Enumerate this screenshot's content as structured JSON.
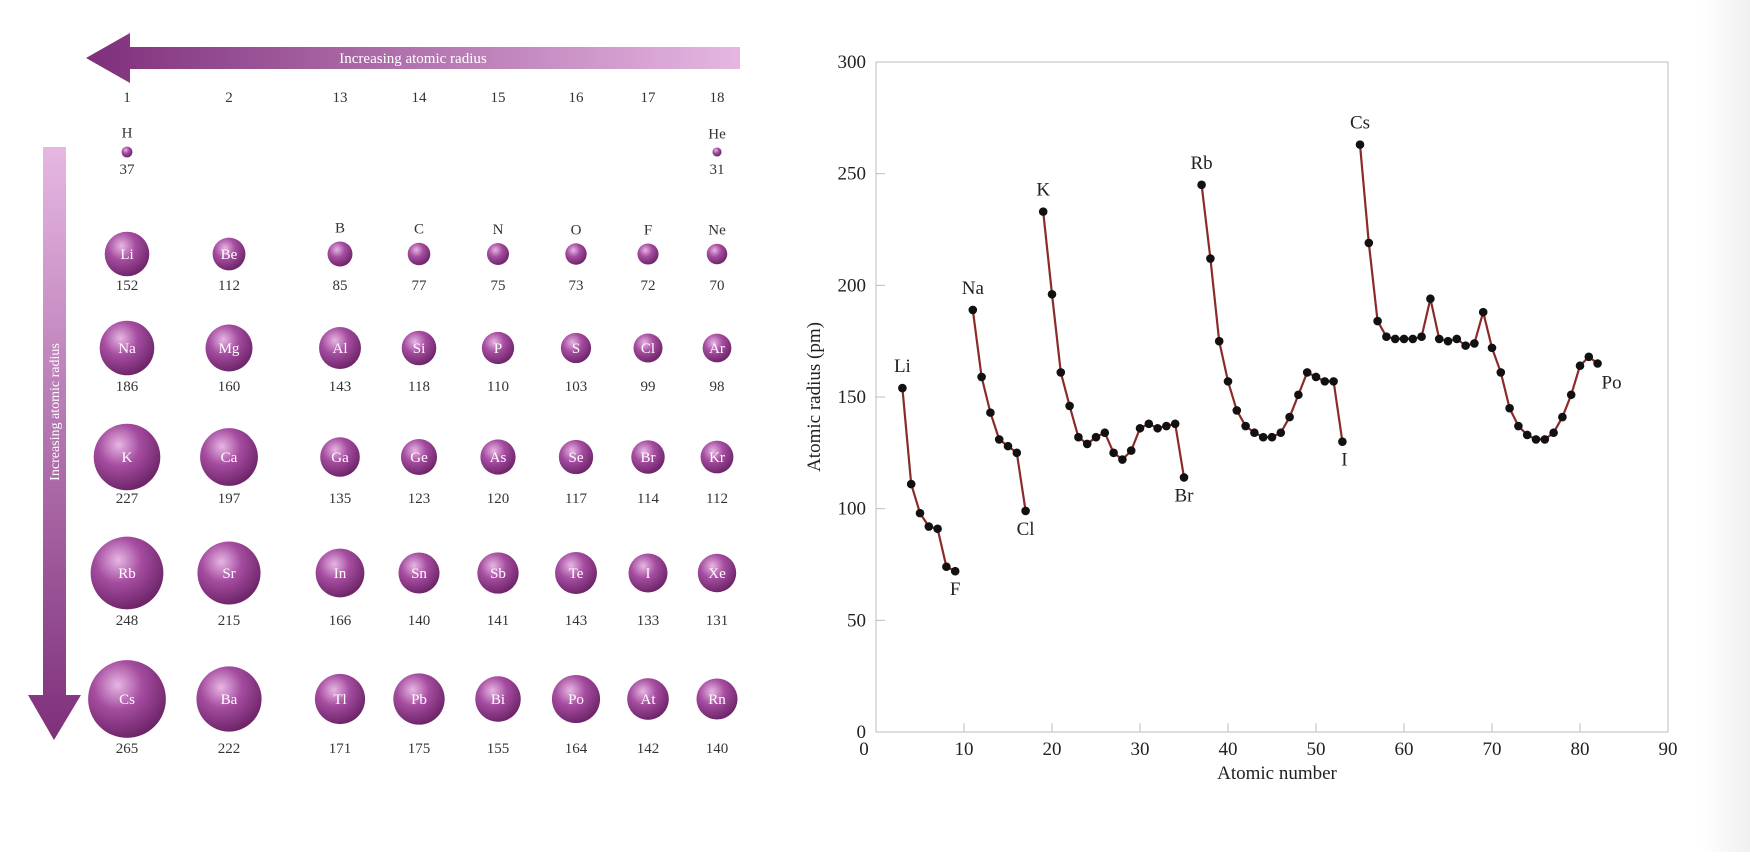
{
  "periodic": {
    "horizontal_arrow_label": "Increasing atomic radius",
    "vertical_arrow_label": "Increasing atomic radius",
    "groups": [
      "1",
      "2",
      "13",
      "14",
      "15",
      "16",
      "17",
      "18"
    ],
    "unit": "pm",
    "sphere_color": "#8e3b8a",
    "arrow_color": "#8a3a86",
    "elements": [
      {
        "symbol": "H",
        "radius": 37,
        "group": "1",
        "period": 1
      },
      {
        "symbol": "He",
        "radius": 31,
        "group": "18",
        "period": 1
      },
      {
        "symbol": "Li",
        "radius": 152,
        "group": "1",
        "period": 2
      },
      {
        "symbol": "Be",
        "radius": 112,
        "group": "2",
        "period": 2
      },
      {
        "symbol": "B",
        "radius": 85,
        "group": "13",
        "period": 2
      },
      {
        "symbol": "C",
        "radius": 77,
        "group": "14",
        "period": 2
      },
      {
        "symbol": "N",
        "radius": 75,
        "group": "15",
        "period": 2
      },
      {
        "symbol": "O",
        "radius": 73,
        "group": "16",
        "period": 2
      },
      {
        "symbol": "F",
        "radius": 72,
        "group": "17",
        "period": 2
      },
      {
        "symbol": "Ne",
        "radius": 70,
        "group": "18",
        "period": 2
      },
      {
        "symbol": "Na",
        "radius": 186,
        "group": "1",
        "period": 3
      },
      {
        "symbol": "Mg",
        "radius": 160,
        "group": "2",
        "period": 3
      },
      {
        "symbol": "Al",
        "radius": 143,
        "group": "13",
        "period": 3
      },
      {
        "symbol": "Si",
        "radius": 118,
        "group": "14",
        "period": 3
      },
      {
        "symbol": "P",
        "radius": 110,
        "group": "15",
        "period": 3
      },
      {
        "symbol": "S",
        "radius": 103,
        "group": "16",
        "period": 3
      },
      {
        "symbol": "Cl",
        "radius": 99,
        "group": "17",
        "period": 3
      },
      {
        "symbol": "Ar",
        "radius": 98,
        "group": "18",
        "period": 3
      },
      {
        "symbol": "K",
        "radius": 227,
        "group": "1",
        "period": 4
      },
      {
        "symbol": "Ca",
        "radius": 197,
        "group": "2",
        "period": 4
      },
      {
        "symbol": "Ga",
        "radius": 135,
        "group": "13",
        "period": 4
      },
      {
        "symbol": "Ge",
        "radius": 123,
        "group": "14",
        "period": 4
      },
      {
        "symbol": "As",
        "radius": 120,
        "group": "15",
        "period": 4
      },
      {
        "symbol": "Se",
        "radius": 117,
        "group": "16",
        "period": 4
      },
      {
        "symbol": "Br",
        "radius": 114,
        "group": "17",
        "period": 4
      },
      {
        "symbol": "Kr",
        "radius": 112,
        "group": "18",
        "period": 4
      },
      {
        "symbol": "Rb",
        "radius": 248,
        "group": "1",
        "period": 5
      },
      {
        "symbol": "Sr",
        "radius": 215,
        "group": "2",
        "period": 5
      },
      {
        "symbol": "In",
        "radius": 166,
        "group": "13",
        "period": 5
      },
      {
        "symbol": "Sn",
        "radius": 140,
        "group": "14",
        "period": 5
      },
      {
        "symbol": "Sb",
        "radius": 141,
        "group": "15",
        "period": 5
      },
      {
        "symbol": "Te",
        "radius": 143,
        "group": "16",
        "period": 5
      },
      {
        "symbol": "I",
        "radius": 133,
        "group": "17",
        "period": 5
      },
      {
        "symbol": "Xe",
        "radius": 131,
        "group": "18",
        "period": 5
      },
      {
        "symbol": "Cs",
        "radius": 265,
        "group": "1",
        "period": 6
      },
      {
        "symbol": "Ba",
        "radius": 222,
        "group": "2",
        "period": 6
      },
      {
        "symbol": "Tl",
        "radius": 171,
        "group": "13",
        "period": 6
      },
      {
        "symbol": "Pb",
        "radius": 175,
        "group": "14",
        "period": 6
      },
      {
        "symbol": "Bi",
        "radius": 155,
        "group": "15",
        "period": 6
      },
      {
        "symbol": "Po",
        "radius": 164,
        "group": "16",
        "period": 6
      },
      {
        "symbol": "At",
        "radius": 142,
        "group": "17",
        "period": 6
      },
      {
        "symbol": "Rn",
        "radius": 140,
        "group": "18",
        "period": 6
      }
    ]
  },
  "chart_data": {
    "type": "line",
    "title": "",
    "xlabel": "Atomic number",
    "ylabel": "Atomic radius (pm)",
    "xlim": [
      0,
      90
    ],
    "ylim": [
      0,
      300
    ],
    "xticks": [
      0,
      10,
      20,
      30,
      40,
      50,
      60,
      70,
      80,
      90
    ],
    "yticks": [
      0,
      50,
      100,
      150,
      200,
      250,
      300
    ],
    "grid": false,
    "line_color": "#8b2a2a",
    "marker_color": "#111111",
    "series": [
      {
        "points": [
          [
            3,
            154
          ],
          [
            4,
            111
          ],
          [
            5,
            98
          ],
          [
            6,
            92
          ],
          [
            7,
            91
          ],
          [
            8,
            74
          ],
          [
            9,
            72
          ]
        ]
      },
      {
        "points": [
          [
            11,
            189
          ],
          [
            12,
            159
          ],
          [
            13,
            143
          ],
          [
            14,
            131
          ],
          [
            15,
            128
          ],
          [
            16,
            125
          ],
          [
            17,
            99
          ]
        ]
      },
      {
        "points": [
          [
            19,
            233
          ],
          [
            20,
            196
          ],
          [
            21,
            161
          ],
          [
            22,
            146
          ],
          [
            23,
            132
          ],
          [
            24,
            129
          ],
          [
            25,
            132
          ],
          [
            26,
            134
          ],
          [
            27,
            125
          ],
          [
            28,
            122
          ],
          [
            29,
            126
          ],
          [
            30,
            136
          ],
          [
            31,
            138
          ],
          [
            32,
            136
          ],
          [
            33,
            137
          ],
          [
            34,
            138
          ],
          [
            35,
            114
          ]
        ]
      },
      {
        "points": [
          [
            37,
            245
          ],
          [
            38,
            212
          ],
          [
            39,
            175
          ],
          [
            40,
            157
          ],
          [
            41,
            144
          ],
          [
            42,
            137
          ],
          [
            43,
            134
          ],
          [
            44,
            132
          ],
          [
            45,
            132
          ],
          [
            46,
            134
          ],
          [
            47,
            141
          ],
          [
            48,
            151
          ],
          [
            49,
            161
          ],
          [
            50,
            159
          ],
          [
            51,
            157
          ],
          [
            52,
            157
          ],
          [
            53,
            130
          ]
        ]
      },
      {
        "points": [
          [
            55,
            263
          ],
          [
            56,
            219
          ],
          [
            57,
            184
          ],
          [
            58,
            177
          ],
          [
            59,
            176
          ],
          [
            60,
            176
          ],
          [
            61,
            176
          ],
          [
            62,
            177
          ],
          [
            63,
            194
          ],
          [
            64,
            176
          ],
          [
            65,
            175
          ],
          [
            66,
            176
          ],
          [
            67,
            173
          ],
          [
            68,
            174
          ],
          [
            69,
            188
          ],
          [
            70,
            172
          ],
          [
            71,
            161
          ],
          [
            72,
            145
          ],
          [
            73,
            137
          ],
          [
            74,
            133
          ],
          [
            75,
            131
          ],
          [
            76,
            131
          ],
          [
            77,
            134
          ],
          [
            78,
            141
          ],
          [
            79,
            151
          ],
          [
            80,
            164
          ],
          [
            81,
            168
          ],
          [
            82,
            165
          ]
        ]
      }
    ],
    "annotations": [
      {
        "text": "Li",
        "x": 3,
        "y": 154
      },
      {
        "text": "F",
        "x": 9,
        "y": 72
      },
      {
        "text": "Na",
        "x": 11,
        "y": 189
      },
      {
        "text": "Cl",
        "x": 17,
        "y": 99
      },
      {
        "text": "K",
        "x": 19,
        "y": 233
      },
      {
        "text": "Br",
        "x": 35,
        "y": 114
      },
      {
        "text": "Rb",
        "x": 37,
        "y": 245
      },
      {
        "text": "I",
        "x": 53,
        "y": 130
      },
      {
        "text": "Cs",
        "x": 55,
        "y": 263
      },
      {
        "text": "Po",
        "x": 82,
        "y": 165
      }
    ]
  }
}
